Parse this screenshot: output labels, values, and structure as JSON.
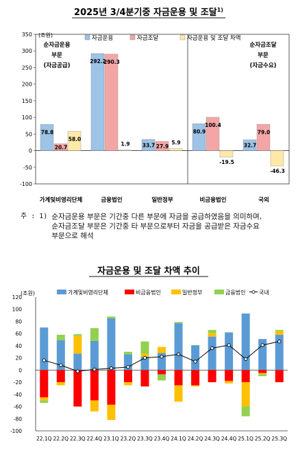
{
  "chart_data": [
    {
      "type": "bar",
      "title": "2025년 3/4분기중 자금운용 및 조달",
      "title_sup": "1)",
      "ylabel": "(조원)",
      "ylim": [
        -100,
        350
      ],
      "yticks": [
        -100,
        -50,
        0,
        50,
        100,
        150,
        200,
        250,
        300,
        350
      ],
      "grid": false,
      "legend_position": "top",
      "categories": [
        "가계및비영리단체",
        "금융법인",
        "일반정부",
        "비금융법인",
        "국외"
      ],
      "series": [
        {
          "name": "자금운용",
          "color": "#9DC3E6",
          "values": [
            78.8,
            292.2,
            33.7,
            80.9,
            32.7
          ]
        },
        {
          "name": "자금조달",
          "color": "#F4A6A6",
          "values": [
            20.7,
            290.3,
            27.9,
            100.4,
            79.0
          ]
        },
        {
          "name": "자금운용 및 조달 차액",
          "color": "#FFE9A8",
          "values": [
            58.0,
            1.9,
            5.9,
            -19.5,
            -46.3
          ]
        }
      ],
      "annotations": {
        "left": [
          "순자금운용",
          "부문",
          "(자금공급)"
        ],
        "right": [
          "순자금조달",
          "부문",
          "(자금수요)"
        ]
      }
    },
    {
      "type": "bar",
      "title": "자금운용 및 조달 차액 추이",
      "ylabel": "(조원)",
      "ylim": [
        -100,
        120
      ],
      "yticks": [
        -100,
        -80,
        -60,
        -40,
        -20,
        0,
        20,
        40,
        60,
        80,
        100,
        120
      ],
      "grid": false,
      "legend_position": "top",
      "stacked": true,
      "categories": [
        "22.1Q",
        "22.2Q",
        "22.3Q",
        "22.4Q",
        "23.1Q",
        "23.2Q",
        "23.3Q",
        "23.4Q",
        "24.1Q",
        "24.2Q",
        "24.3Q",
        "24.4Q",
        "25.1Q",
        "25.2Q",
        "25.3Q"
      ],
      "series": [
        {
          "name": "가계및비영리단체",
          "color": "#5B9BD5",
          "values": [
            70,
            49,
            27,
            48,
            85,
            26,
            22,
            28,
            77,
            41,
            55,
            62,
            93,
            51,
            58
          ]
        },
        {
          "name": "비금융법인",
          "color": "#FF0000",
          "values": [
            -45,
            -20,
            -60,
            -50,
            -57,
            -20,
            -27,
            -7,
            -25,
            -25,
            -20,
            -18,
            -20,
            -5,
            -20
          ]
        },
        {
          "name": "일반정부",
          "color": "#FFC000",
          "values": [
            -5,
            -5,
            29,
            -18,
            -25,
            -5,
            5,
            10,
            -27,
            -2,
            6,
            -4,
            -40,
            -2,
            6
          ]
        },
        {
          "name": "금융법인",
          "color": "#92D050",
          "values": [
            -4,
            9,
            3,
            21,
            3,
            4,
            20,
            -10,
            2,
            0,
            5,
            0,
            -16,
            -3,
            2
          ]
        }
      ],
      "line": {
        "name": "국내",
        "values": [
          16,
          8,
          -2,
          1,
          3,
          5,
          20,
          22,
          26,
          14,
          36,
          41,
          18,
          41,
          47
        ]
      }
    }
  ],
  "note": {
    "prefix": "주 : 1) ",
    "lines": [
      "순자금운용 부문은 기간중 다른 부문에 자금을 공급하였음을 의미하며,",
      "순자금조달 부문은 기간중 타 부문으로부터 자금을 공급받은 자금수요",
      "부문으로 해석"
    ]
  }
}
